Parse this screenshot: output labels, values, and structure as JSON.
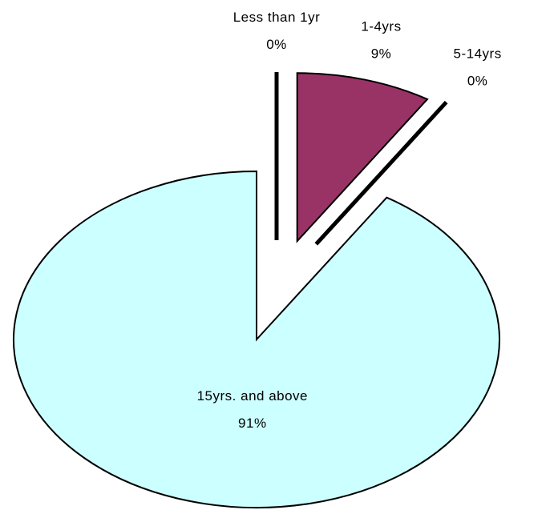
{
  "chart_data": {
    "type": "pie",
    "categories": [
      "Less than 1yr",
      "1-4yrs",
      "5-14yrs",
      "15yrs. and above"
    ],
    "values": [
      0,
      9,
      0,
      91
    ],
    "value_labels": [
      "0%",
      "9%",
      "0%",
      "91%"
    ],
    "colors": [
      "#ffffff",
      "#993366",
      "#ffffff",
      "#ccffff"
    ]
  }
}
